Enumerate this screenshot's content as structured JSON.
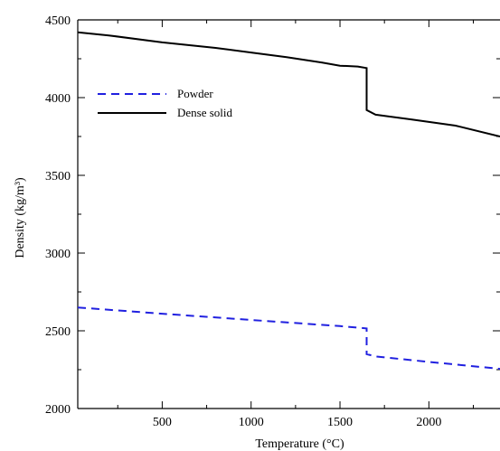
{
  "chart_data": {
    "type": "line",
    "title": "",
    "xlabel": "Temperature (°C)",
    "ylabel": "Density (kg/m³)",
    "xlim": [
      25,
      2400
    ],
    "ylim": [
      2000,
      4500
    ],
    "xticks": [
      500,
      1000,
      1500,
      2000
    ],
    "yticks": [
      2000,
      2500,
      3000,
      3500,
      4000,
      4500
    ],
    "grid": false,
    "legend_position": "upper-left",
    "series": [
      {
        "name": "Powder",
        "color": "#2020e0",
        "style": "dashed",
        "x": [
          25,
          500,
          1000,
          1500,
          1650,
          1650,
          1700,
          2000,
          2400
        ],
        "y": [
          2650,
          2610,
          2570,
          2530,
          2515,
          2350,
          2335,
          2300,
          2255
        ]
      },
      {
        "name": "Dense solid",
        "color": "#000000",
        "style": "solid",
        "x": [
          25,
          200,
          500,
          800,
          1000,
          1200,
          1400,
          1500,
          1600,
          1650,
          1650,
          1700,
          1900,
          2150,
          2400
        ],
        "y": [
          4420,
          4400,
          4355,
          4320,
          4290,
          4260,
          4225,
          4205,
          4200,
          4190,
          3920,
          3890,
          3860,
          3820,
          3750
        ]
      }
    ]
  }
}
